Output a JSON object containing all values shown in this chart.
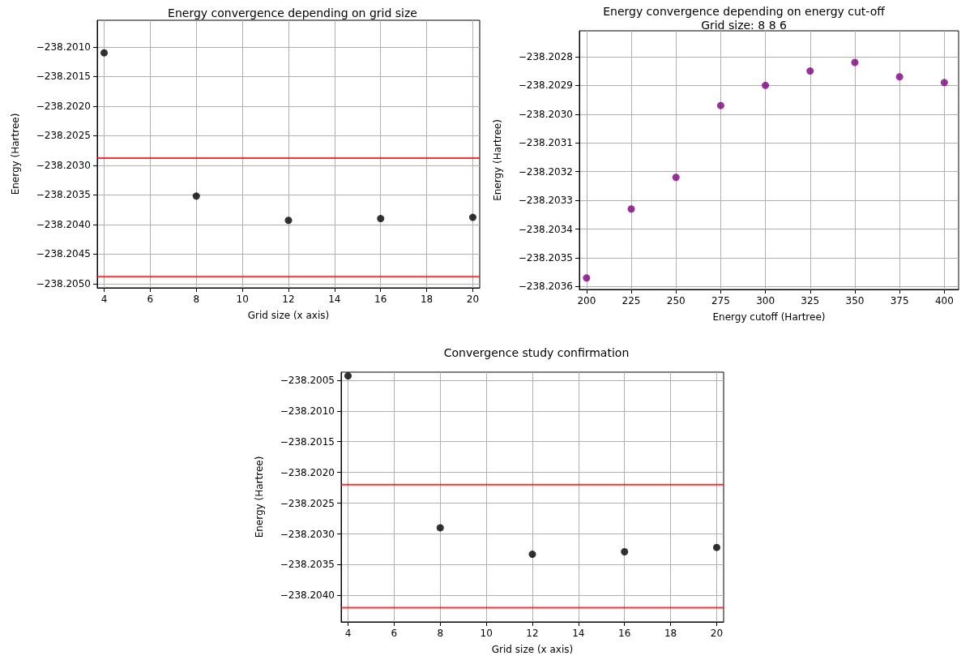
{
  "chart_data": [
    {
      "type": "scatter",
      "title": "Energy convergence depending on grid size",
      "xlabel": "Grid size (x axis)",
      "ylabel": "Energy (Hartree)",
      "x": [
        4,
        8,
        12,
        16,
        20
      ],
      "series": [
        {
          "color": "#000000",
          "values": [
            -238.2011,
            -238.20352,
            -238.20393,
            -238.2039,
            -238.20388
          ]
        }
      ],
      "xlim": [
        3.7,
        20.3
      ],
      "xticks": [
        4,
        6,
        8,
        10,
        12,
        14,
        16,
        18,
        20
      ],
      "ylim": [
        -238.20507,
        -238.20055
      ],
      "yticks": [
        {
          "value": -238.201,
          "label": "−238.2010"
        },
        {
          "value": -238.2015,
          "label": "−238.2015"
        },
        {
          "value": -238.202,
          "label": "−238.2020"
        },
        {
          "value": -238.2025,
          "label": "−238.2025"
        },
        {
          "value": -238.203,
          "label": "−238.2030"
        },
        {
          "value": -238.2035,
          "label": "−238.2035"
        },
        {
          "value": -238.204,
          "label": "−238.2040"
        },
        {
          "value": -238.2045,
          "label": "−238.2045"
        },
        {
          "value": -238.205,
          "label": "−238.2050"
        }
      ],
      "ref_lines": [
        {
          "axis": "y",
          "value": -238.20288,
          "color": "#ff0000"
        },
        {
          "axis": "y",
          "value": -238.20488,
          "color": "#ff0000"
        }
      ],
      "grid": true,
      "marker": "circle"
    },
    {
      "type": "scatter",
      "title": "Energy convergence depending on energy cut-off",
      "subtitle": "Grid size: 8 8 6",
      "xlabel": "Energy cutoff (Hartree)",
      "ylabel": "Energy (Hartree)",
      "x": [
        200,
        225,
        250,
        275,
        300,
        325,
        350,
        375,
        400
      ],
      "series": [
        {
          "color": "#800080",
          "values": [
            -238.20357,
            -238.20333,
            -238.20322,
            -238.20297,
            -238.2029,
            -238.20285,
            -238.20282,
            -238.20287,
            -238.20289
          ]
        }
      ],
      "xlim": [
        196,
        408
      ],
      "xticks": [
        200,
        225,
        250,
        275,
        300,
        325,
        350,
        375,
        400
      ],
      "ylim": [
        -238.20361,
        -238.20271
      ],
      "yticks": [
        {
          "value": -238.2028,
          "label": "−238.2028"
        },
        {
          "value": -238.2029,
          "label": "−238.2029"
        },
        {
          "value": -238.203,
          "label": "−238.2030"
        },
        {
          "value": -238.2031,
          "label": "−238.2031"
        },
        {
          "value": -238.2032,
          "label": "−238.2032"
        },
        {
          "value": -238.2033,
          "label": "−238.2033"
        },
        {
          "value": -238.2034,
          "label": "−238.2034"
        },
        {
          "value": -238.2035,
          "label": "−238.2035"
        },
        {
          "value": -238.2036,
          "label": "−238.2036"
        }
      ],
      "grid": true,
      "marker": "circle"
    },
    {
      "type": "scatter",
      "title": "Convergence study confirmation",
      "xlabel": "Grid size (x axis)",
      "ylabel": "Energy (Hartree)",
      "x": [
        4,
        8,
        12,
        16,
        20
      ],
      "series": [
        {
          "color": "#000000",
          "values": [
            -238.20043,
            -238.2029,
            -238.20333,
            -238.20329,
            -238.20322
          ]
        }
      ],
      "xlim": [
        3.7,
        20.3
      ],
      "xticks": [
        4,
        6,
        8,
        10,
        12,
        14,
        16,
        18,
        20
      ],
      "ylim": [
        -238.20443,
        -238.20037
      ],
      "yticks": [
        {
          "value": -238.2005,
          "label": "−238.2005"
        },
        {
          "value": -238.201,
          "label": "−238.2010"
        },
        {
          "value": -238.2015,
          "label": "−238.2015"
        },
        {
          "value": -238.202,
          "label": "−238.2020"
        },
        {
          "value": -238.2025,
          "label": "−238.2025"
        },
        {
          "value": -238.203,
          "label": "−238.2030"
        },
        {
          "value": -238.2035,
          "label": "−238.2035"
        },
        {
          "value": -238.204,
          "label": "−238.2040"
        }
      ],
      "ref_lines": [
        {
          "axis": "y",
          "value": -238.2022,
          "color": "#ff0000"
        },
        {
          "axis": "y",
          "value": -238.2042,
          "color": "#ff0000"
        }
      ],
      "grid": true,
      "marker": "circle"
    }
  ]
}
